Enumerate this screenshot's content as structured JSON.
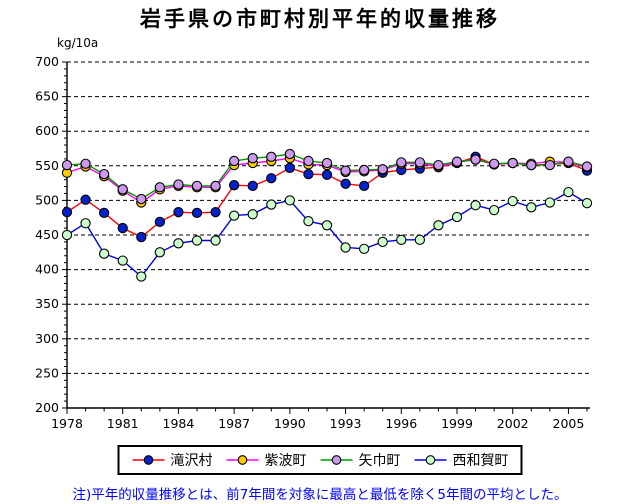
{
  "title": "岩手県の市町村別平年的収量推移",
  "y_unit": "kg/10a",
  "note": "注)平年的収量推移とは、前7年間を対象に最高と最低を除く5年間の平均とした。",
  "chart_data": {
    "type": "line",
    "x": [
      1978,
      1979,
      1980,
      1981,
      1982,
      1983,
      1984,
      1985,
      1986,
      1987,
      1988,
      1989,
      1990,
      1991,
      1992,
      1993,
      1994,
      1995,
      1996,
      1997,
      1998,
      1999,
      2000,
      2001,
      2002,
      2003,
      2004,
      2005,
      2006
    ],
    "x_tick_labels": [
      "1978",
      "1981",
      "1984",
      "1987",
      "1990",
      "1993",
      "1996",
      "1999",
      "2002",
      "2005"
    ],
    "x_tick_years": [
      1978,
      1981,
      1984,
      1987,
      1990,
      1993,
      1996,
      1999,
      2002,
      2005
    ],
    "xlabel": "",
    "ylabel": "kg/10a",
    "ylim": [
      200,
      700
    ],
    "y_ticks": [
      200,
      250,
      300,
      350,
      400,
      450,
      500,
      550,
      600,
      650,
      700
    ],
    "grid": "horizontal-dashed",
    "legend_position": "bottom",
    "series": [
      {
        "name": "滝沢村",
        "line_color": "#FF0000",
        "marker_color": "#0022CC",
        "values": [
          483,
          501,
          482,
          460,
          447,
          469,
          483,
          482,
          483,
          522,
          521,
          532,
          547,
          538,
          537,
          524,
          521,
          540,
          544,
          546,
          548,
          554,
          563,
          552,
          554,
          551,
          552,
          554,
          543
        ]
      },
      {
        "name": "紫波町",
        "line_color": "#FF00FF",
        "marker_color": "#FFCC00",
        "values": [
          540,
          549,
          535,
          514,
          497,
          516,
          521,
          519,
          519,
          551,
          554,
          557,
          561,
          552,
          551,
          541,
          542,
          544,
          553,
          553,
          549,
          555,
          559,
          552,
          554,
          553,
          556,
          555,
          548
        ]
      },
      {
        "name": "矢巾町",
        "line_color": "#009900",
        "marker_color": "#CC99EE",
        "values": [
          551,
          553,
          538,
          516,
          502,
          519,
          523,
          521,
          521,
          557,
          561,
          563,
          567,
          557,
          554,
          543,
          544,
          545,
          555,
          555,
          551,
          556,
          559,
          553,
          554,
          551,
          551,
          556,
          549
        ]
      },
      {
        "name": "西和賀町",
        "line_color": "#0000EE",
        "marker_color": "#CCFFCC",
        "values": [
          450,
          467,
          423,
          413,
          390,
          425,
          438,
          442,
          442,
          478,
          480,
          494,
          500,
          470,
          464,
          432,
          430,
          440,
          443,
          443,
          464,
          476,
          493,
          486,
          499,
          490,
          497,
          512,
          496
        ]
      }
    ]
  }
}
